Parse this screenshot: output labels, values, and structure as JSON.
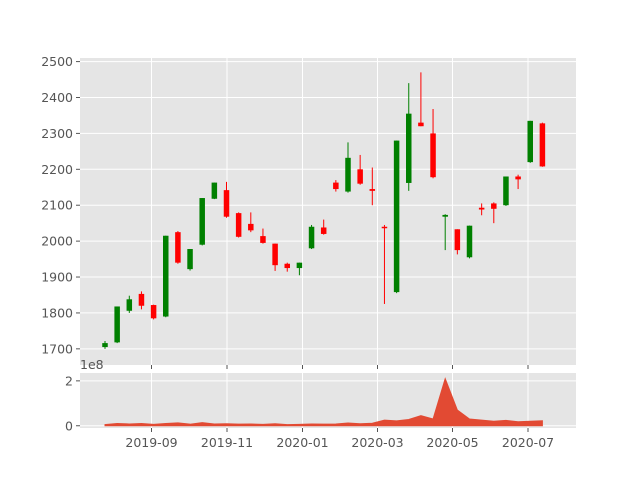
{
  "chart_data": [
    {
      "type": "candlestick",
      "title": "",
      "xlabel": "",
      "ylabel": "",
      "ylim": [
        1655,
        2510
      ],
      "grid": true,
      "y_ticks": [
        1700,
        1800,
        1900,
        2000,
        2100,
        2200,
        2300,
        2400,
        2500
      ],
      "candles": [
        {
          "date": "2019-07-22",
          "open": 1705,
          "high": 1722,
          "low": 1700,
          "close": 1716
        },
        {
          "date": "2019-07-29",
          "open": 1718,
          "high": 1818,
          "low": 1716,
          "close": 1818
        },
        {
          "date": "2019-08-05",
          "open": 1806,
          "high": 1848,
          "low": 1800,
          "close": 1838
        },
        {
          "date": "2019-08-12",
          "open": 1853,
          "high": 1860,
          "low": 1810,
          "close": 1820
        },
        {
          "date": "2019-08-19",
          "open": 1822,
          "high": 1823,
          "low": 1782,
          "close": 1785
        },
        {
          "date": "2019-08-26",
          "open": 1790,
          "high": 2015,
          "low": 1788,
          "close": 2015
        },
        {
          "date": "2019-09-02",
          "open": 2025,
          "high": 2028,
          "low": 1937,
          "close": 1940
        },
        {
          "date": "2019-09-09",
          "open": 1922,
          "high": 1978,
          "low": 1918,
          "close": 1978
        },
        {
          "date": "2019-09-16",
          "open": 1990,
          "high": 2120,
          "low": 1988,
          "close": 2120
        },
        {
          "date": "2019-09-23",
          "open": 2118,
          "high": 2163,
          "low": 2117,
          "close": 2163
        },
        {
          "date": "2019-09-30",
          "open": 2142,
          "high": 2165,
          "low": 2065,
          "close": 2068
        },
        {
          "date": "2019-10-07",
          "open": 2078,
          "high": 2080,
          "low": 2010,
          "close": 2012
        },
        {
          "date": "2019-10-14",
          "open": 2048,
          "high": 2080,
          "low": 2025,
          "close": 2030
        },
        {
          "date": "2019-10-21",
          "open": 2014,
          "high": 2035,
          "low": 1993,
          "close": 1995
        },
        {
          "date": "2019-10-28",
          "open": 1993,
          "high": 1993,
          "low": 1917,
          "close": 1933
        },
        {
          "date": "2019-11-04",
          "open": 1937,
          "high": 1940,
          "low": 1915,
          "close": 1925
        },
        {
          "date": "2019-11-11",
          "open": 1925,
          "high": 1940,
          "low": 1905,
          "close": 1940
        },
        {
          "date": "2019-11-18",
          "open": 1980,
          "high": 2045,
          "low": 1978,
          "close": 2040
        },
        {
          "date": "2019-11-25",
          "open": 2038,
          "high": 2060,
          "low": 2018,
          "close": 2020
        },
        {
          "date": "2019-12-02",
          "open": 2163,
          "high": 2170,
          "low": 2138,
          "close": 2145
        },
        {
          "date": "2019-12-09",
          "open": 2138,
          "high": 2275,
          "low": 2135,
          "close": 2232
        },
        {
          "date": "2019-12-16",
          "open": 2200,
          "high": 2240,
          "low": 2157,
          "close": 2160
        },
        {
          "date": "2019-12-23",
          "open": 2145,
          "high": 2205,
          "low": 2100,
          "close": 2140
        },
        {
          "date": "2019-12-30",
          "open": 2040,
          "high": 2045,
          "low": 1825,
          "close": 2037
        },
        {
          "date": "2020-01-06",
          "open": 1858,
          "high": 2280,
          "low": 1855,
          "close": 2280
        },
        {
          "date": "2020-01-13",
          "open": 2162,
          "high": 2440,
          "low": 2140,
          "close": 2355
        },
        {
          "date": "2020-01-20",
          "open": 2330,
          "high": 2470,
          "low": 2320,
          "close": 2320
        },
        {
          "date": "2020-01-27",
          "open": 2300,
          "high": 2368,
          "low": 2175,
          "close": 2178
        },
        {
          "date": "2020-02-03",
          "open": 2068,
          "high": 2075,
          "low": 1975,
          "close": 2073
        },
        {
          "date": "2020-02-10",
          "open": 2033,
          "high": 2033,
          "low": 1963,
          "close": 1975
        },
        {
          "date": "2020-02-17",
          "open": 1955,
          "high": 2043,
          "low": 1952,
          "close": 2043
        },
        {
          "date": "2020-02-24",
          "open": 2093,
          "high": 2105,
          "low": 2072,
          "close": 2088
        },
        {
          "date": "2020-03-02",
          "open": 2105,
          "high": 2108,
          "low": 2050,
          "close": 2090
        },
        {
          "date": "2020-03-09",
          "open": 2100,
          "high": 2180,
          "low": 2098,
          "close": 2180
        },
        {
          "date": "2020-03-16",
          "open": 2180,
          "high": 2185,
          "low": 2145,
          "close": 2172
        },
        {
          "date": "2020-03-23",
          "open": 2220,
          "high": 2335,
          "low": 2218,
          "close": 2335
        },
        {
          "date": "2020-03-30",
          "open": 2328,
          "high": 2330,
          "low": 2207,
          "close": 2208
        }
      ]
    },
    {
      "type": "area",
      "title": "",
      "xlabel": "",
      "ylabel": "",
      "ylim": [
        -0.1,
        2.35
      ],
      "y_offset_text": "1e8",
      "grid": true,
      "y_ticks": [
        0,
        2
      ],
      "x_ticks": [
        "2019-09",
        "2019-11",
        "2020-01",
        "2020-03",
        "2020-05",
        "2020-07"
      ],
      "x": [
        0,
        1,
        2,
        3,
        4,
        5,
        6,
        7,
        8,
        9,
        10,
        11,
        12,
        13,
        14,
        15,
        16,
        17,
        18,
        19,
        20,
        21,
        22,
        23,
        24,
        25,
        26,
        27,
        28,
        29,
        30,
        31,
        32,
        33,
        34,
        35,
        36
      ],
      "values": [
        0.05,
        0.1,
        0.08,
        0.1,
        0.06,
        0.1,
        0.13,
        0.07,
        0.14,
        0.08,
        0.09,
        0.07,
        0.08,
        0.06,
        0.09,
        0.05,
        0.06,
        0.08,
        0.07,
        0.08,
        0.12,
        0.09,
        0.11,
        0.25,
        0.22,
        0.28,
        0.45,
        0.3,
        2.1,
        0.7,
        0.3,
        0.25,
        0.2,
        0.24,
        0.18,
        0.2,
        0.22
      ]
    }
  ],
  "colors": {
    "up": "#008000",
    "down": "#ff0000",
    "volume": "#e24a33",
    "plot_bg": "#e5e5e5",
    "grid": "#ffffff"
  }
}
